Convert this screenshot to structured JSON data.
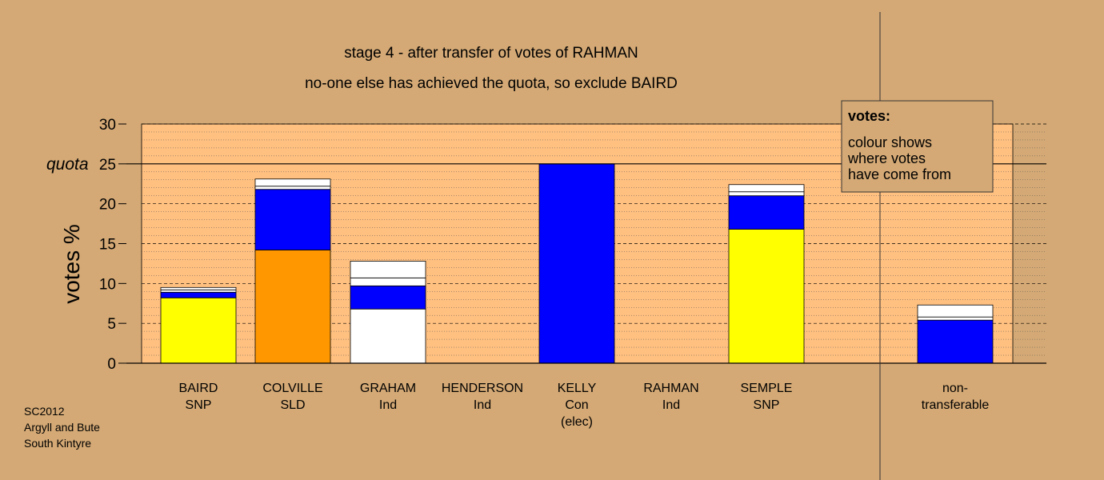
{
  "title_line1": "stage 4 - after transfer of votes of RAHMAN",
  "title_line2": "no-one else has achieved the quota, so exclude BAIRD",
  "footer": [
    "SC2012",
    "Argyll and Bute",
    "South Kintyre"
  ],
  "legend": {
    "title": "votes:",
    "lines": [
      "colour shows",
      "where votes",
      "have come from"
    ]
  },
  "colors": {
    "background": "#d4a975",
    "plot_area": "#ffc080",
    "SNP": "#ffff00",
    "SLD": "#ff9800",
    "Con": "#0000ff",
    "Ind": "#ffffff",
    "transferred": "#ffffff"
  },
  "chart_data": {
    "type": "bar",
    "stacked": true,
    "ylabel": "votes %",
    "ylim": [
      0,
      30
    ],
    "yticks": [
      0,
      5,
      10,
      15,
      20,
      25,
      30
    ],
    "quota": 25,
    "quota_label": "quota",
    "grid": true,
    "legend_position": "top-right",
    "categories": [
      {
        "name": "BAIRD",
        "party": "SNP",
        "note": ""
      },
      {
        "name": "COLVILLE",
        "party": "SLD",
        "note": ""
      },
      {
        "name": "GRAHAM",
        "party": "Ind",
        "note": ""
      },
      {
        "name": "HENDERSON",
        "party": "Ind",
        "note": ""
      },
      {
        "name": "KELLY",
        "party": "Con",
        "note": "(elec)"
      },
      {
        "name": "RAHMAN",
        "party": "Ind",
        "note": ""
      },
      {
        "name": "SEMPLE",
        "party": "SNP",
        "note": ""
      },
      {
        "name": "non-",
        "party": "transferable",
        "note": ""
      }
    ],
    "stacks": [
      [
        {
          "value": 8.2,
          "color": "#ffff00"
        },
        {
          "value": 0.7,
          "color": "#0000ff"
        },
        {
          "value": 0.3,
          "color": "#ffffff"
        },
        {
          "value": 0.3,
          "color": "#ffffff"
        }
      ],
      [
        {
          "value": 14.2,
          "color": "#ff9800"
        },
        {
          "value": 7.6,
          "color": "#0000ff"
        },
        {
          "value": 0.4,
          "color": "#ffffff"
        },
        {
          "value": 0.9,
          "color": "#ffffff"
        }
      ],
      [
        {
          "value": 6.8,
          "color": "#ffffff"
        },
        {
          "value": 2.9,
          "color": "#0000ff"
        },
        {
          "value": 1.0,
          "color": "#ffffff"
        },
        {
          "value": 2.1,
          "color": "#ffffff"
        }
      ],
      [],
      [
        {
          "value": 25.0,
          "color": "#0000ff"
        }
      ],
      [],
      [
        {
          "value": 16.8,
          "color": "#ffff00"
        },
        {
          "value": 4.2,
          "color": "#0000ff"
        },
        {
          "value": 0.5,
          "color": "#ffffff"
        },
        {
          "value": 0.9,
          "color": "#ffffff"
        }
      ],
      [
        {
          "value": 5.4,
          "color": "#0000ff"
        },
        {
          "value": 0.4,
          "color": "#ffffff"
        },
        {
          "value": 1.5,
          "color": "#ffffff"
        }
      ]
    ]
  }
}
